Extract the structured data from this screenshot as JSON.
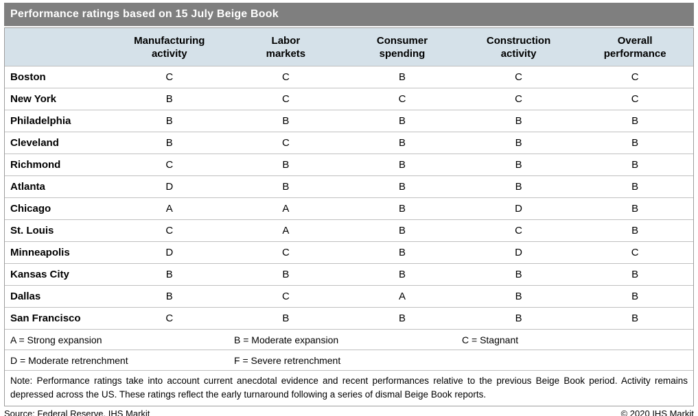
{
  "chart_data": {
    "type": "table",
    "title": "Performance ratings based on 15 July Beige Book",
    "column_headers": [
      "Manufacturing\nactivity",
      "Labor\nmarkets",
      "Consumer\nspending",
      "Construction\nactivity",
      "Overall\nperformance"
    ],
    "rows": [
      {
        "district": "Boston",
        "ratings": [
          "C",
          "C",
          "B",
          "C",
          "C"
        ]
      },
      {
        "district": "New York",
        "ratings": [
          "B",
          "C",
          "C",
          "C",
          "C"
        ]
      },
      {
        "district": "Philadelphia",
        "ratings": [
          "B",
          "B",
          "B",
          "B",
          "B"
        ]
      },
      {
        "district": "Cleveland",
        "ratings": [
          "B",
          "C",
          "B",
          "B",
          "B"
        ]
      },
      {
        "district": "Richmond",
        "ratings": [
          "C",
          "B",
          "B",
          "B",
          "B"
        ]
      },
      {
        "district": "Atlanta",
        "ratings": [
          "D",
          "B",
          "B",
          "B",
          "B"
        ]
      },
      {
        "district": "Chicago",
        "ratings": [
          "A",
          "A",
          "B",
          "D",
          "B"
        ]
      },
      {
        "district": "St. Louis",
        "ratings": [
          "C",
          "A",
          "B",
          "C",
          "B"
        ]
      },
      {
        "district": "Minneapolis",
        "ratings": [
          "D",
          "C",
          "B",
          "D",
          "C"
        ]
      },
      {
        "district": "Kansas City",
        "ratings": [
          "B",
          "B",
          "B",
          "B",
          "B"
        ]
      },
      {
        "district": "Dallas",
        "ratings": [
          "B",
          "C",
          "A",
          "B",
          "B"
        ]
      },
      {
        "district": "San Francisco",
        "ratings": [
          "C",
          "B",
          "B",
          "B",
          "B"
        ]
      }
    ],
    "legend_rows": [
      [
        "A = Strong expansion",
        "B = Moderate expansion",
        "C = Stagnant"
      ],
      [
        "D = Moderate retrenchment",
        "F = Severe retrenchment"
      ]
    ],
    "rating_scale": {
      "A": "Strong expansion",
      "B": "Moderate expansion",
      "C": "Stagnant",
      "D": "Moderate retrenchment",
      "F": "Severe retrenchment"
    },
    "note": "Note: Performance ratings take into account current anecdotal evidence and recent performances relative to the previous Beige Book period. Activity remains depressed across the US. These ratings reflect the early turnaround following a series of dismal Beige Book reports.",
    "source": "Source: Federal Reserve, IHS Markit",
    "copyright": "© 2020 IHS Markit"
  },
  "colors": {
    "title_bar_bg": "#7f7f7f",
    "title_text": "#ffffff",
    "header_row_bg": "#d5e1e9",
    "outer_border": "#9c9c9c",
    "row_divider": "#bfbfbf",
    "body_text": "#000000"
  }
}
